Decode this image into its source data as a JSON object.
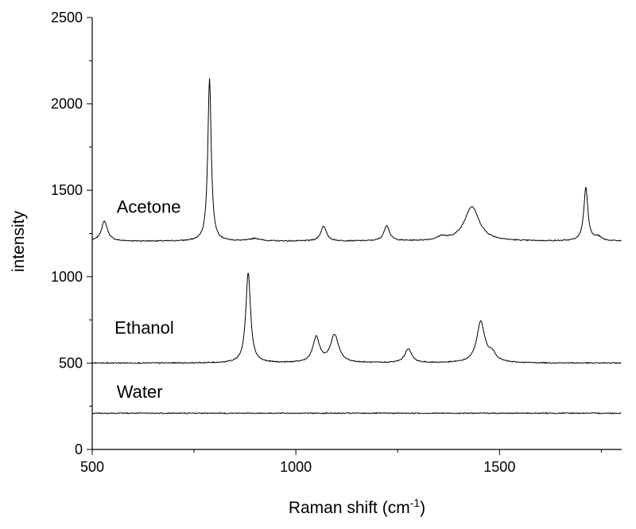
{
  "chart_data": {
    "type": "line",
    "title": "",
    "xlabel": "Raman shift (cm",
    "xlabel_superscript": "-1",
    "xlabel_suffix": ")",
    "ylabel": "intensity",
    "xlim": [
      500,
      1800
    ],
    "ylim": [
      0,
      2500
    ],
    "x_ticks": [
      500,
      1000,
      1500
    ],
    "y_ticks": [
      0,
      500,
      1000,
      1500,
      2000,
      2500
    ],
    "x_minor_step": 250,
    "y_minor_step": 250,
    "grid": false,
    "legend": "none",
    "line_color": "#000000",
    "series": [
      {
        "name": "Acetone",
        "baseline": 1205,
        "noise": 3,
        "peaks": [
          {
            "x": 530,
            "height": 115,
            "width": 9
          },
          {
            "x": 788,
            "height": 945,
            "width": 5
          },
          {
            "x": 900,
            "height": 15,
            "width": 15
          },
          {
            "x": 1068,
            "height": 88,
            "width": 8
          },
          {
            "x": 1223,
            "height": 90,
            "width": 8
          },
          {
            "x": 1358,
            "height": 20,
            "width": 12
          },
          {
            "x": 1432,
            "height": 200,
            "width": 22
          },
          {
            "x": 1712,
            "height": 310,
            "width": 6
          },
          {
            "x": 1742,
            "height": 22,
            "width": 10
          }
        ]
      },
      {
        "name": "Ethanol",
        "baseline": 500,
        "noise": 3,
        "peaks": [
          {
            "x": 883,
            "height": 525,
            "width": 7
          },
          {
            "x": 1050,
            "height": 145,
            "width": 10
          },
          {
            "x": 1095,
            "height": 160,
            "width": 12
          },
          {
            "x": 1276,
            "height": 82,
            "width": 10
          },
          {
            "x": 1454,
            "height": 235,
            "width": 12
          },
          {
            "x": 1482,
            "height": 45,
            "width": 12
          }
        ]
      },
      {
        "name": "Water",
        "baseline": 210,
        "noise": 3,
        "peaks": []
      }
    ],
    "labels": [
      {
        "text": "Acetone",
        "x": 560,
        "y": 1370
      },
      {
        "text": "Ethanol",
        "x": 555,
        "y": 670
      },
      {
        "text": "Water",
        "x": 560,
        "y": 300
      }
    ]
  }
}
